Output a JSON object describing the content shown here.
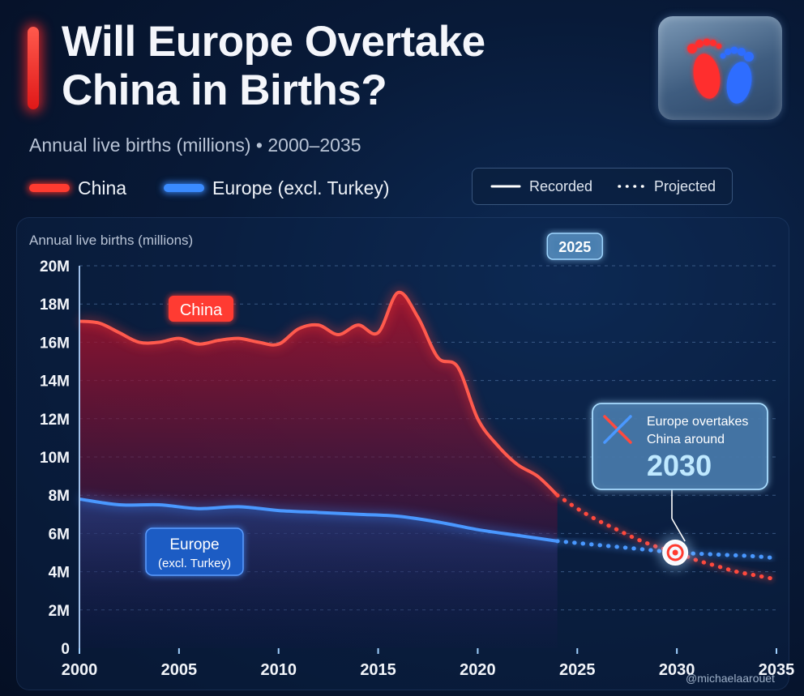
{
  "header": {
    "title_line1": "Will Europe Overtake",
    "title_line2": "China in Births?",
    "subtitle": "Annual live births (millions) • 2000–2035",
    "icon": "baby-footprints-icon"
  },
  "legend": {
    "series": [
      {
        "label": "China",
        "color": "#ff3b30"
      },
      {
        "label": "Europe (excl. Turkey)",
        "color": "#3a8bff"
      }
    ],
    "recorded": "Recorded",
    "projected": "Projected"
  },
  "chart_data": {
    "type": "line",
    "ylabel": "Annual live births (millions)",
    "xlim": [
      2000,
      2035
    ],
    "ylim": [
      0,
      20
    ],
    "x_ticks": [
      "2000",
      "2005",
      "2010",
      "2015",
      "2020",
      "2025",
      "2030",
      "2035"
    ],
    "y_ticks": [
      "0",
      "2M",
      "4M",
      "6M",
      "8M",
      "10M",
      "12M",
      "14M",
      "16M",
      "18M",
      "20M"
    ],
    "grid": true,
    "series": [
      {
        "name": "China",
        "color": "#ff3b30",
        "x": [
          2000,
          2001,
          2002,
          2003,
          2004,
          2005,
          2006,
          2007,
          2008,
          2009,
          2010,
          2011,
          2012,
          2013,
          2014,
          2015,
          2016,
          2017,
          2018,
          2019,
          2020,
          2021,
          2022,
          2023,
          2024
        ],
        "values": [
          17.1,
          17.0,
          16.5,
          16.0,
          16.0,
          16.2,
          15.9,
          16.1,
          16.2,
          16.0,
          15.9,
          16.7,
          16.9,
          16.4,
          16.9,
          16.5,
          18.6,
          17.3,
          15.2,
          14.7,
          12.0,
          10.6,
          9.6,
          9.0,
          8.0
        ],
        "projected_x": [
          2024,
          2025,
          2026,
          2027,
          2028,
          2029,
          2030,
          2031,
          2032,
          2033,
          2034,
          2035
        ],
        "projected_values": [
          8.0,
          7.3,
          6.7,
          6.2,
          5.7,
          5.3,
          5.0,
          4.6,
          4.3,
          4.0,
          3.8,
          3.6
        ]
      },
      {
        "name": "Europe (excl. Turkey)",
        "color": "#3a8bff",
        "x": [
          2000,
          2002,
          2004,
          2006,
          2008,
          2010,
          2012,
          2014,
          2016,
          2018,
          2020,
          2022,
          2024
        ],
        "values": [
          7.8,
          7.5,
          7.5,
          7.3,
          7.4,
          7.2,
          7.1,
          7.0,
          6.9,
          6.6,
          6.2,
          5.9,
          5.6
        ],
        "projected_x": [
          2024,
          2026,
          2028,
          2030,
          2032,
          2034,
          2035
        ],
        "projected_values": [
          5.6,
          5.4,
          5.2,
          5.0,
          4.9,
          4.8,
          4.7
        ]
      }
    ],
    "annotations": {
      "marker_label": "2025",
      "china_label": "China",
      "europe_label_line1": "Europe",
      "europe_label_line2": "(excl. Turkey)",
      "callout_line1": "Europe overtakes",
      "callout_line2": "China around",
      "callout_year": "2030",
      "crossover_year": 2030,
      "crossover_value": 5.0
    }
  },
  "watermark": "@michaelaarouet"
}
